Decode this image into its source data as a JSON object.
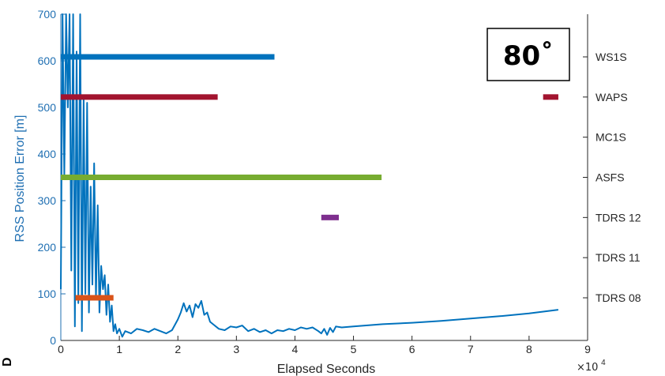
{
  "chart_data": {
    "type": "line",
    "xlabel": "Elapsed Seconds",
    "x_exponent_label": "×10",
    "x_exponent_power": "4",
    "ylabel": "RSS Position Error [m]",
    "xlim": [
      0,
      90000
    ],
    "ylim": [
      0,
      700
    ],
    "x_ticks": [
      "0",
      "1",
      "2",
      "3",
      "4",
      "5",
      "6",
      "7",
      "8",
      "9"
    ],
    "y_ticks": [
      "0",
      "100",
      "200",
      "300",
      "400",
      "500",
      "600",
      "700"
    ],
    "annotation": "80˚",
    "corner_mark": "D",
    "series": [
      {
        "color": "#0072BD",
        "x": [
          0,
          300,
          600,
          900,
          1200,
          1500,
          1800,
          2100,
          2400,
          2700,
          3000,
          3300,
          3600,
          3900,
          4200,
          4500,
          4800,
          5100,
          5400,
          5700,
          6000,
          6300,
          6600,
          6900,
          7200,
          7500,
          7800,
          8100,
          8400,
          8700,
          9000,
          9300,
          9600,
          10000,
          10500,
          11000,
          12000,
          13000,
          14000,
          15000,
          16000,
          17000,
          18000,
          19000,
          20000,
          20500,
          21000,
          21500,
          22000,
          22500,
          23000,
          23500,
          24000,
          24500,
          25000,
          25500,
          26000,
          27000,
          28000,
          29000,
          30000,
          31000,
          32000,
          33000,
          34000,
          35000,
          36000,
          37000,
          38000,
          39000,
          40000,
          41000,
          42000,
          43000,
          44000,
          44500,
          45000,
          45500,
          46000,
          46500,
          47000,
          48000,
          50000,
          55000,
          60000,
          65000,
          70000,
          75000,
          80000,
          85000
        ],
        "y": [
          110,
          700,
          350,
          700,
          500,
          700,
          150,
          700,
          30,
          620,
          80,
          700,
          20,
          520,
          100,
          510,
          60,
          330,
          120,
          380,
          90,
          290,
          60,
          160,
          110,
          140,
          55,
          120,
          40,
          75,
          20,
          35,
          15,
          25,
          8,
          20,
          15,
          25,
          22,
          18,
          25,
          20,
          15,
          22,
          45,
          60,
          80,
          62,
          75,
          50,
          78,
          70,
          85,
          55,
          60,
          40,
          35,
          25,
          22,
          30,
          28,
          32,
          20,
          25,
          18,
          22,
          15,
          22,
          20,
          25,
          22,
          28,
          25,
          28,
          20,
          15,
          25,
          12,
          27,
          18,
          30,
          28,
          30,
          35,
          38,
          42,
          47,
          52,
          58,
          66
        ]
      }
    ],
    "bands": [
      {
        "label": "WS1S",
        "color": "#0072BD",
        "segments": [
          [
            0,
            36500
          ]
        ]
      },
      {
        "label": "WAPS",
        "color": "#A2142F",
        "segments": [
          [
            0,
            26800
          ],
          [
            82400,
            85000
          ]
        ]
      },
      {
        "label": "MC1S",
        "color": "#7E2F8E",
        "segments": []
      },
      {
        "label": "ASFS",
        "color": "#77AC30",
        "segments": [
          [
            0,
            54800
          ]
        ]
      },
      {
        "label": "TDRS 12",
        "color": "#7E2F8E",
        "segments": [
          [
            44500,
            47500
          ]
        ]
      },
      {
        "label": "TDRS 11",
        "color": "#7E2F8E",
        "segments": []
      },
      {
        "label": "TDRS 08",
        "color": "#D95319",
        "segments": [
          [
            2500,
            9000
          ]
        ]
      }
    ]
  }
}
